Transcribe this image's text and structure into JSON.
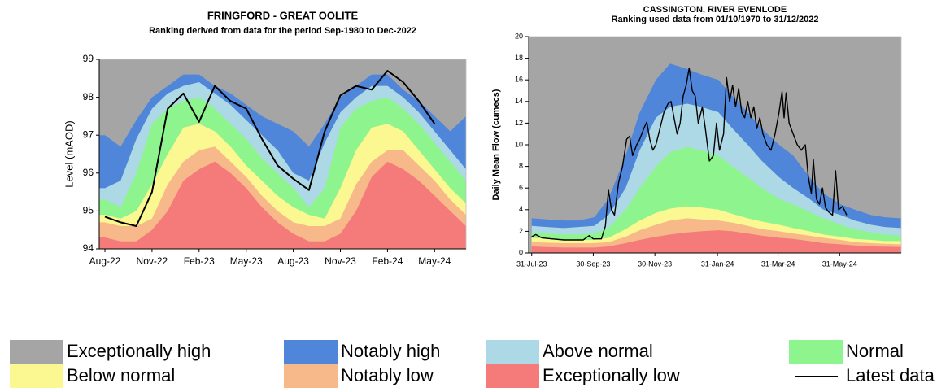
{
  "legend": [
    {
      "name": "Exceptionally high",
      "color": "#a5a5a5"
    },
    {
      "name": "Notably high",
      "color": "#4f86d9"
    },
    {
      "name": "Above normal",
      "color": "#add8e6"
    },
    {
      "name": "Normal",
      "color": "#8ef58e"
    },
    {
      "name": "Below normal",
      "color": "#fbf791"
    },
    {
      "name": "Notably low",
      "color": "#f8b98a"
    },
    {
      "name": "Exceptionally low",
      "color": "#f57a7a"
    },
    {
      "name": "Latest data",
      "color": "#000000"
    }
  ],
  "chart_data": [
    {
      "type": "band",
      "title": "FRINGFORD - GREAT OOLITE",
      "subtitle": "Ranking derived from data for the period Sep-1980 to Dec-2022",
      "y_label": "Level (mAOD)",
      "categories": [
        "Aug-22",
        null,
        null,
        "Nov-22",
        null,
        null,
        "Feb-23",
        null,
        null,
        "May-23",
        null,
        null,
        "Aug-23",
        null,
        null,
        "Nov-23",
        null,
        null,
        "Feb-24",
        null,
        null,
        "May-24",
        null,
        null
      ],
      "ylim": [
        94,
        99
      ],
      "yticks": [
        94,
        95,
        96,
        97,
        98,
        99
      ],
      "background": "Exceptionally high",
      "series": [
        {
          "name": "Notably high",
          "values": [
            97.0,
            96.7,
            97.4,
            98.0,
            98.3,
            98.6,
            98.6,
            98.3,
            98.1,
            97.8,
            97.5,
            97.3,
            97.1,
            96.7,
            97.3,
            98.0,
            98.3,
            98.6,
            98.6,
            98.2,
            97.9,
            97.5,
            97.1,
            97.5
          ]
        },
        {
          "name": "Above normal",
          "values": [
            95.6,
            95.8,
            96.9,
            97.7,
            98.1,
            98.3,
            98.4,
            98.1,
            97.8,
            97.4,
            97.0,
            96.6,
            96.0,
            95.8,
            96.8,
            97.6,
            98.0,
            98.3,
            98.3,
            98.0,
            97.6,
            97.1,
            96.6,
            96.1
          ]
        },
        {
          "name": "Normal",
          "values": [
            95.3,
            95.1,
            96.0,
            97.3,
            97.7,
            97.9,
            98.0,
            97.7,
            97.3,
            96.9,
            96.4,
            96.0,
            95.6,
            95.1,
            95.6,
            97.2,
            97.7,
            97.9,
            98.0,
            97.7,
            97.3,
            96.8,
            96.3,
            95.8
          ]
        },
        {
          "name": "Below normal",
          "values": [
            94.9,
            94.8,
            95.0,
            95.7,
            96.5,
            97.2,
            97.3,
            97.1,
            96.7,
            96.2,
            95.8,
            95.4,
            95.1,
            94.9,
            94.8,
            95.6,
            96.6,
            97.2,
            97.3,
            97.1,
            96.6,
            96.1,
            95.6,
            95.2
          ]
        },
        {
          "name": "Notably low",
          "values": [
            94.7,
            94.6,
            94.6,
            94.8,
            95.7,
            96.3,
            96.6,
            96.7,
            96.3,
            95.9,
            95.4,
            95.0,
            94.7,
            94.6,
            94.6,
            94.8,
            95.7,
            96.3,
            96.6,
            96.6,
            96.2,
            95.8,
            95.3,
            94.9
          ]
        },
        {
          "name": "Exceptionally low",
          "values": [
            94.3,
            94.2,
            94.2,
            94.5,
            95.0,
            95.8,
            96.1,
            96.3,
            96.0,
            95.6,
            95.1,
            94.7,
            94.4,
            94.2,
            94.2,
            94.4,
            95.0,
            95.9,
            96.3,
            96.1,
            95.8,
            95.4,
            95.0,
            94.6
          ]
        }
      ],
      "line": {
        "name": "Latest data",
        "values": [
          94.85,
          94.7,
          94.6,
          95.5,
          97.7,
          98.1,
          97.35,
          98.3,
          97.9,
          97.7,
          96.9,
          96.2,
          95.85,
          95.55,
          97.1,
          98.05,
          98.3,
          98.2,
          98.7,
          98.4,
          97.9,
          97.3,
          null,
          null
        ]
      }
    },
    {
      "type": "band",
      "title": "CASSINGTON, RIVER EVENLODE",
      "subtitle": "Ranking used data from 01/10/1970 to 31/12/2022",
      "y_label": "Daily Mean Flow (cumecs)",
      "x": [
        "2023-07-31",
        "2023-08-15",
        "2023-09-01",
        "2023-09-15",
        "2023-10-01",
        "2023-10-15",
        "2023-11-01",
        "2023-11-15",
        "2023-12-01",
        "2023-12-15",
        "2024-01-01",
        "2024-01-15",
        "2024-02-01",
        "2024-02-15",
        "2024-03-01",
        "2024-03-15",
        "2024-04-01",
        "2024-04-15",
        "2024-05-01",
        "2024-05-15",
        "2024-06-01",
        "2024-06-15",
        "2024-07-01",
        "2024-07-15",
        "2024-07-31"
      ],
      "xlim": [
        "2023-07-28",
        "2024-07-31"
      ],
      "xticks": [
        {
          "value": "2023-07-31",
          "label": "31-Jul-23"
        },
        {
          "value": "2023-09-30",
          "label": "30-Sep-23"
        },
        {
          "value": "2023-11-30",
          "label": "30-Nov-23"
        },
        {
          "value": "2024-01-31",
          "label": "31-Jan-24"
        },
        {
          "value": "2024-03-31",
          "label": "31-Mar-24"
        },
        {
          "value": "2024-05-31",
          "label": "31-May-24"
        }
      ],
      "ylim": [
        0,
        20
      ],
      "yticks": [
        0,
        2,
        4,
        6,
        8,
        10,
        12,
        14,
        16,
        18,
        20
      ],
      "background": "Exceptionally high",
      "series": [
        {
          "name": "Notably high",
          "values": [
            3.2,
            3.1,
            3.0,
            3.0,
            3.3,
            5,
            9,
            13,
            16,
            17.5,
            17,
            16.5,
            16,
            14.5,
            13,
            11.5,
            10,
            9,
            7,
            5.5,
            4.5,
            4,
            3.5,
            3.3,
            3.2
          ]
        },
        {
          "name": "Above normal",
          "values": [
            2.5,
            2.4,
            2.3,
            2.4,
            2.5,
            3.5,
            6,
            9.5,
            12.5,
            13.5,
            13.8,
            13.5,
            13,
            11.5,
            10,
            8.5,
            7,
            6,
            5,
            4,
            3.5,
            3,
            2.6,
            2.4,
            2.3
          ]
        },
        {
          "name": "Normal",
          "values": [
            1.9,
            1.8,
            1.7,
            1.7,
            1.8,
            2.3,
            4,
            6,
            8,
            9.3,
            9.8,
            9.5,
            9,
            8,
            7,
            6,
            5,
            4.5,
            3.8,
            3.2,
            2.6,
            2.2,
            1.9,
            1.7,
            1.6
          ]
        },
        {
          "name": "Below normal",
          "values": [
            1.4,
            1.3,
            1.2,
            1.2,
            1.2,
            1.4,
            2.2,
            3,
            3.7,
            4.1,
            4.3,
            4.2,
            4,
            3.6,
            3.2,
            2.9,
            2.6,
            2.3,
            2,
            1.7,
            1.5,
            1.3,
            1.2,
            1.1,
            1.1
          ]
        },
        {
          "name": "Notably low",
          "values": [
            1.0,
            0.95,
            0.9,
            0.9,
            0.9,
            1.0,
            1.5,
            2.1,
            2.6,
            3.0,
            3.2,
            3.1,
            3.0,
            2.8,
            2.5,
            2.2,
            2.0,
            1.8,
            1.6,
            1.4,
            1.2,
            1.0,
            0.9,
            0.85,
            0.8
          ]
        },
        {
          "name": "Exceptionally low",
          "values": [
            0.6,
            0.55,
            0.5,
            0.5,
            0.5,
            0.6,
            0.9,
            1.2,
            1.5,
            1.7,
            1.9,
            2.0,
            2.1,
            2.0,
            1.8,
            1.6,
            1.4,
            1.3,
            1.1,
            0.9,
            0.8,
            0.7,
            0.6,
            0.58,
            0.55
          ]
        }
      ],
      "line": {
        "name": "Latest data",
        "x": [
          "2023-07-31",
          "2023-08-04",
          "2023-08-10",
          "2023-08-20",
          "2023-09-01",
          "2023-09-10",
          "2023-09-20",
          "2023-09-26",
          "2023-09-30",
          "2023-10-08",
          "2023-10-12",
          "2023-10-15",
          "2023-10-18",
          "2023-10-21",
          "2023-10-25",
          "2023-10-29",
          "2023-11-02",
          "2023-11-05",
          "2023-11-08",
          "2023-11-12",
          "2023-11-15",
          "2023-11-19",
          "2023-11-22",
          "2023-11-25",
          "2023-11-28",
          "2023-12-01",
          "2023-12-05",
          "2023-12-09",
          "2023-12-13",
          "2023-12-16",
          "2023-12-19",
          "2023-12-22",
          "2023-12-25",
          "2023-12-28",
          "2023-12-31",
          "2024-01-03",
          "2024-01-06",
          "2024-01-09",
          "2024-01-12",
          "2024-01-16",
          "2024-01-19",
          "2024-01-23",
          "2024-01-27",
          "2024-01-30",
          "2024-02-02",
          "2024-02-06",
          "2024-02-09",
          "2024-02-12",
          "2024-02-15",
          "2024-02-18",
          "2024-02-21",
          "2024-02-24",
          "2024-02-27",
          "2024-03-01",
          "2024-03-04",
          "2024-03-07",
          "2024-03-10",
          "2024-03-13",
          "2024-03-16",
          "2024-03-20",
          "2024-03-24",
          "2024-03-28",
          "2024-04-01",
          "2024-04-04",
          "2024-04-06",
          "2024-04-08",
          "2024-04-11",
          "2024-04-15",
          "2024-04-19",
          "2024-04-23",
          "2024-04-27",
          "2024-04-30",
          "2024-05-03",
          "2024-05-05",
          "2024-05-08",
          "2024-05-11",
          "2024-05-14",
          "2024-05-17",
          "2024-05-20",
          "2024-05-24",
          "2024-05-27",
          "2024-05-30",
          "2024-06-03",
          "2024-06-07"
        ],
        "values": [
          1.5,
          1.7,
          1.4,
          1.3,
          1.2,
          1.2,
          1.2,
          1.6,
          1.3,
          1.3,
          2.5,
          5.8,
          4.0,
          3.5,
          6.5,
          8.0,
          10.5,
          10.8,
          9.0,
          10.0,
          10.5,
          11.5,
          12.1,
          10.5,
          9.5,
          10.0,
          11.5,
          13.0,
          13.8,
          14.0,
          12.5,
          11.0,
          12.0,
          14.5,
          15.5,
          17.1,
          15.0,
          14.5,
          12.0,
          13.5,
          11.5,
          8.5,
          9.0,
          12.0,
          9.5,
          11.0,
          16.2,
          14.0,
          15.5,
          13.5,
          15.2,
          13.0,
          12.5,
          14.0,
          12.5,
          13.5,
          11.5,
          12.5,
          11.0,
          10.0,
          9.5,
          11.0,
          13.0,
          14.9,
          12.5,
          14.8,
          12.0,
          11.0,
          10.0,
          9.5,
          10.0,
          7.0,
          5.5,
          8.6,
          5.0,
          4.5,
          6.0,
          4.2,
          3.8,
          3.5,
          7.6,
          4.0,
          4.3,
          3.5
        ]
      }
    }
  ]
}
